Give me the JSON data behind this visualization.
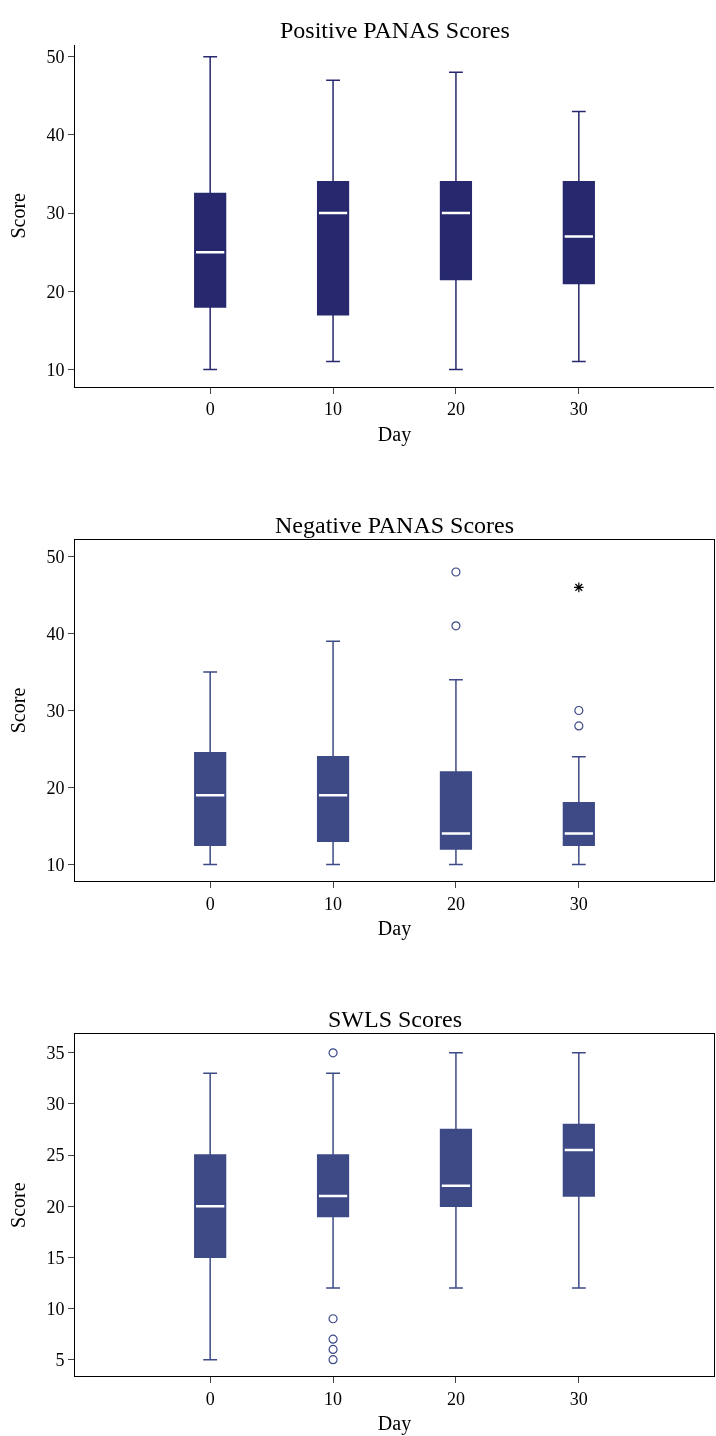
{
  "chart_data": [
    {
      "type": "box",
      "title": "Positive PANAS Scores",
      "xlabel": "Day",
      "ylabel": "Score",
      "categories": [
        "0",
        "10",
        "20",
        "30"
      ],
      "ylim": [
        7.8,
        51.5
      ],
      "yticks": [
        10,
        20,
        30,
        40,
        50
      ],
      "series": [
        {
          "color": "#27286e",
          "boxes": [
            {
              "low": 10,
              "q1": 18,
              "median": 25,
              "q3": 32.5,
              "high": 50
            },
            {
              "low": 11,
              "q1": 17,
              "median": 30,
              "q3": 34,
              "high": 47
            },
            {
              "low": 10,
              "q1": 21.5,
              "median": 30,
              "q3": 34,
              "high": 48
            },
            {
              "low": 11,
              "q1": 21,
              "median": 27,
              "q3": 34,
              "high": 43
            }
          ]
        }
      ]
    },
    {
      "type": "box",
      "title": "Negative PANAS Scores",
      "xlabel": "Day",
      "ylabel": "Score",
      "categories": [
        "0",
        "10",
        "20",
        "30"
      ],
      "ylim": [
        7.8,
        52.2
      ],
      "yticks": [
        10,
        20,
        30,
        40,
        50
      ],
      "series": [
        {
          "color": "#3d4a86",
          "boxes": [
            {
              "low": 10,
              "q1": 12.5,
              "median": 19,
              "q3": 24.5,
              "high": 35
            },
            {
              "low": 10,
              "q1": 13,
              "median": 19,
              "q3": 24,
              "high": 39
            },
            {
              "low": 10,
              "q1": 12,
              "median": 14,
              "q3": 22,
              "high": 34,
              "outliers": [
                41,
                48
              ]
            },
            {
              "low": 10,
              "q1": 12.5,
              "median": 14,
              "q3": 18,
              "high": 24,
              "outliers": [
                28,
                30
              ]
            }
          ]
        },
        {
          "type": "scatter",
          "marker": "cross",
          "color": "#000000",
          "x": [
            "30"
          ],
          "values": [
            46
          ]
        }
      ]
    },
    {
      "type": "box",
      "title": "SWLS Scores",
      "xlabel": "Day",
      "ylabel": "Score",
      "categories": [
        "0",
        "10",
        "20",
        "30"
      ],
      "ylim": [
        3.4,
        36.8
      ],
      "yticks": [
        5,
        10,
        15,
        20,
        25,
        30,
        35
      ],
      "series": [
        {
          "color": "#3d4a86",
          "boxes": [
            {
              "low": 5,
              "q1": 15,
              "median": 20,
              "q3": 25,
              "high": 33
            },
            {
              "low": 12,
              "q1": 19,
              "median": 21,
              "q3": 25,
              "high": 33,
              "outliers": [
                35,
                9,
                7,
                6,
                5
              ]
            },
            {
              "low": 12,
              "q1": 20,
              "median": 22,
              "q3": 27.5,
              "high": 35
            },
            {
              "low": 12,
              "q1": 21,
              "median": 25.5,
              "q3": 28,
              "high": 35
            }
          ]
        }
      ]
    }
  ]
}
